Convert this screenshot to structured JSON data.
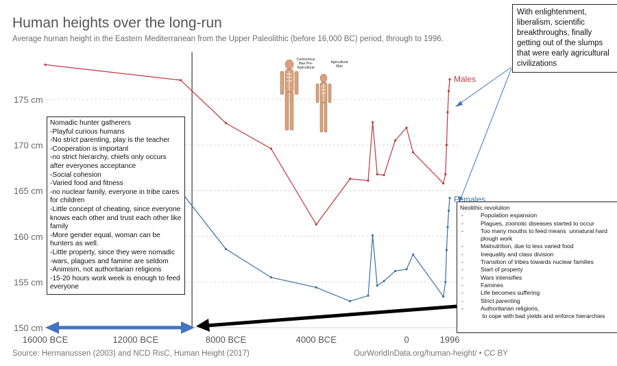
{
  "title": "Human heights over the long-run",
  "subtitle": "Average human height in the Eastern Mediterranean from the Upper Paleolithic (before 16,000 BC) period, through to 1996.",
  "source": "Source: Hermanussen (2003) and NCD RisC, Human Height (2017)",
  "owid": "OurWorldInData.org/human-height/ • CC BY",
  "colors": {
    "males": "#c0373e",
    "females": "#3b6fa6",
    "grid": "#d6d6d6",
    "arrow_blue": "#4472c4",
    "arrow_black": "#000000"
  },
  "chart_data": {
    "type": "line",
    "x_ticks": [
      "16000 BCE",
      "12000 BCE",
      "8000 BCE",
      "4000 BCE",
      "0",
      "1996"
    ],
    "y_ticks": [
      "150 cm",
      "155 cm",
      "160 cm",
      "165 cm",
      "170 cm",
      "175 cm"
    ],
    "ylim": [
      150,
      178
    ],
    "series": [
      {
        "name": "Males",
        "points": [
          [
            -16000,
            178.8
          ],
          [
            -10000,
            177.1
          ],
          [
            -8000,
            172.4
          ],
          [
            -6000,
            169.6
          ],
          [
            -4000,
            161.3
          ],
          [
            -2500,
            166.3
          ],
          [
            -1700,
            166.1
          ],
          [
            -1500,
            172.5
          ],
          [
            -1300,
            166.8
          ],
          [
            -1000,
            166.7
          ],
          [
            -500,
            170.5
          ],
          [
            0,
            171.9
          ],
          [
            300,
            169.2
          ],
          [
            1700,
            165.8
          ],
          [
            1800,
            166.8
          ],
          [
            1850,
            170.0
          ],
          [
            1900,
            173.6
          ],
          [
            1950,
            175.9
          ],
          [
            1996,
            177.2
          ]
        ]
      },
      {
        "name": "Females",
        "points": [
          [
            -10500,
            166.5
          ],
          [
            -8000,
            158.6
          ],
          [
            -6000,
            155.5
          ],
          [
            -4000,
            154.4
          ],
          [
            -2500,
            152.9
          ],
          [
            -1700,
            153.5
          ],
          [
            -1500,
            160.1
          ],
          [
            -1300,
            154.6
          ],
          [
            -1000,
            155.1
          ],
          [
            -500,
            156.2
          ],
          [
            0,
            156.4
          ],
          [
            300,
            158.0
          ],
          [
            1700,
            153.4
          ],
          [
            1800,
            155.0
          ],
          [
            1850,
            158.5
          ],
          [
            1900,
            161.0
          ],
          [
            1950,
            162.8
          ],
          [
            1996,
            164.2
          ]
        ]
      }
    ],
    "annotations": {
      "divider_year": -9500
    }
  },
  "illustration": {
    "label_left": "Carnivorous Man Pre-Agricultural",
    "label_right": "Agricultural Man"
  },
  "box_left": {
    "lines": [
      "Nomadic hunter gatherers",
      "-Playful curious humans",
      "-No strict parenting, play is the teacher",
      "-Cooperation is important",
      "-no strict hierarchy, chiefs only occurs after everyones acceptance",
      "-Social cohesion",
      "-Varied food and fitness",
      "-no nuclear family, everyone in tribe cares for children",
      "-Little concept of cheating, since everyone knows each other and trust each other like family",
      "-More gender equal, woman can be hunters as well.",
      "-Little property, since they were nomadic",
      "-wars, plagues and famine are seldom",
      "-Animism, not authoritarian religions",
      "-15-20 hours work week is enough to feed everyone"
    ]
  },
  "box_right": {
    "heading": "Neolithic revolution",
    "items": [
      "Population expansion",
      "Plagues, zoonotic diseases started to occur",
      "Too many mouths to feed means  unnatural hard plough work",
      "Malnutrition, due to less varied food",
      "Inequality and class division",
      "Transition of tribes towards nuclear families",
      "Start of property",
      "Wars intensifies",
      "Famines",
      "Life becomes suffering",
      "Strict parenting",
      "Authoritarian religions,\n to cope with bad yields and enforce hierarchies"
    ]
  },
  "box_top": {
    "text": "With enlightenment, liberalism, scientific breakthroughs, finally getting out of the slumps that were early agricultural civilizations"
  }
}
